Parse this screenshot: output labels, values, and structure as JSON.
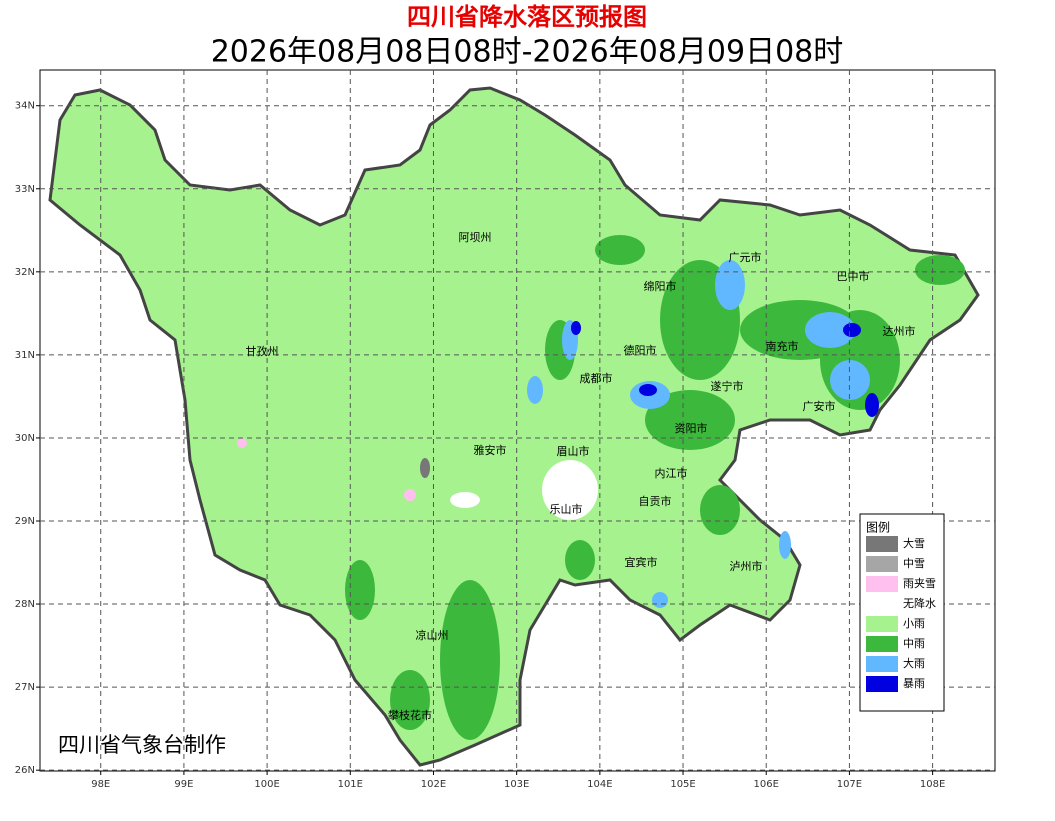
{
  "map": {
    "title": "四川省降水落区预报图",
    "subtitle": "2026年08月08日08时-2026年08月09日08时",
    "credit": "四川省气象台制作",
    "xlim": [
      97.27,
      108.75
    ],
    "ylim": [
      25.99,
      34.43
    ],
    "xticks": [
      {
        "value": 98,
        "label": "98E"
      },
      {
        "value": 99,
        "label": "99E"
      },
      {
        "value": 100,
        "label": "100E"
      },
      {
        "value": 101,
        "label": "101E"
      },
      {
        "value": 102,
        "label": "102E"
      },
      {
        "value": 103,
        "label": "103E"
      },
      {
        "value": 104,
        "label": "104E"
      },
      {
        "value": 105,
        "label": "105E"
      },
      {
        "value": 106,
        "label": "106E"
      },
      {
        "value": 107,
        "label": "107E"
      },
      {
        "value": 108,
        "label": "108E"
      }
    ],
    "yticks": [
      {
        "value": 26,
        "label": "26N"
      },
      {
        "value": 27,
        "label": "27N"
      },
      {
        "value": 28,
        "label": "28N"
      },
      {
        "value": 29,
        "label": "29N"
      },
      {
        "value": 30,
        "label": "30N"
      },
      {
        "value": 31,
        "label": "31N"
      },
      {
        "value": 32,
        "label": "32N"
      },
      {
        "value": 33,
        "label": "33N"
      },
      {
        "value": 34,
        "label": "34N"
      }
    ],
    "grid": true,
    "cities": [
      "阿坝州",
      "甘孜州",
      "凉山州",
      "攀枝花市",
      "雅安市",
      "成都市",
      "德阳市",
      "绵阳市",
      "广元市",
      "巴中市",
      "达州市",
      "南充市",
      "遂宁市",
      "广安市",
      "资阳市",
      "眉山市",
      "乐山市",
      "内江市",
      "自贡市",
      "宜宾市",
      "泸州市"
    ],
    "legend": {
      "title": "图例",
      "items": [
        {
          "name": "大雪",
          "color": "#777777"
        },
        {
          "name": "中雪",
          "color": "#a6a6a6"
        },
        {
          "name": "雨夹雪",
          "color": "#ffc0f0"
        },
        {
          "name": "无降水",
          "color": "#ffffff"
        },
        {
          "name": "小雨",
          "color": "#a6f28f"
        },
        {
          "name": "中雨",
          "color": "#3cb93c"
        },
        {
          "name": "大雨",
          "color": "#61b8ff"
        },
        {
          "name": "暴雨",
          "color": "#0000e1"
        }
      ]
    }
  }
}
